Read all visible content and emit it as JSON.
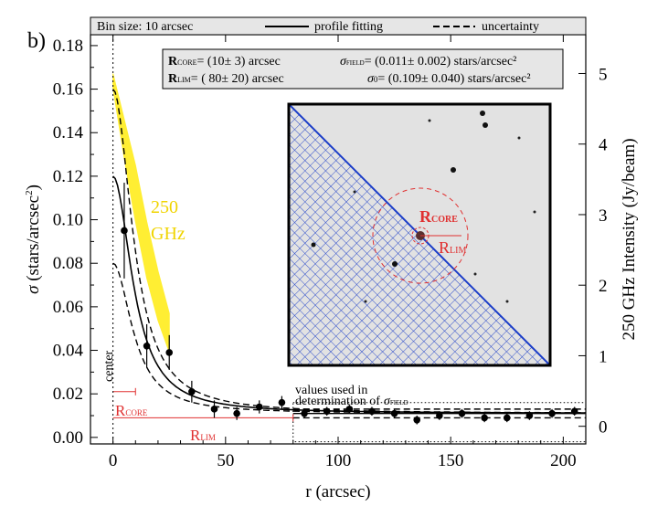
{
  "chart_data": {
    "type": "scatter",
    "panel_label": "b)",
    "title": "",
    "xlabel": "r (arcsec)",
    "ylabel": "σ (stars/arcsec²)",
    "ylabel_right": "250 GHz Intensity (Jy/beam)",
    "xlim": [
      -10,
      210
    ],
    "ylim": [
      -0.003,
      0.185
    ],
    "ylim_right": [
      -0.25,
      5.55
    ],
    "x_ticks": [
      0,
      50,
      100,
      150,
      200
    ],
    "y_ticks": [
      0.0,
      0.02,
      0.04,
      0.06,
      0.08,
      0.1,
      0.12,
      0.14,
      0.16,
      0.18
    ],
    "y_tick_labels": [
      "0.00",
      "0.02",
      "0.04",
      "0.06",
      "0.08",
      "0.10",
      "0.12",
      "0.14",
      "0.16",
      "0.18"
    ],
    "y_right_ticks": [
      0,
      1,
      2,
      3,
      4,
      5
    ],
    "legend": {
      "bin_size": "Bin size: 10 arcsec",
      "profile_fit": "profile fitting",
      "uncertainty": "uncertainty"
    },
    "params": {
      "r_core_label": "R",
      "r_core_sub": "CORE",
      "r_core_value": "= (10± 3) arcsec",
      "r_lim_label": "R",
      "r_lim_sub": "LIM",
      "r_lim_value": "= ( 80± 20) arcsec",
      "sigma_field_label": "σ",
      "sigma_field_sub": "FIELD",
      "sigma_field_value": "= (0.011± 0.002) stars/arcsec²",
      "sigma_0_label": "σ",
      "sigma_0_sub": "0",
      "sigma_0_value": "= (0.109± 0.040) stars/arcsec²"
    },
    "points": {
      "r": [
        5,
        15,
        25,
        35,
        45,
        55,
        65,
        75,
        85,
        95,
        105,
        115,
        125,
        135,
        145,
        155,
        165,
        175,
        185,
        195,
        205
      ],
      "sigma": [
        0.095,
        0.042,
        0.039,
        0.021,
        0.013,
        0.011,
        0.014,
        0.016,
        0.011,
        0.012,
        0.013,
        0.012,
        0.011,
        0.008,
        0.01,
        0.011,
        0.009,
        0.009,
        0.01,
        0.011,
        0.012
      ],
      "err": [
        0.022,
        0.01,
        0.008,
        0.005,
        0.004,
        0.003,
        0.003,
        0.003,
        0.002,
        0.002,
        0.002,
        0.002,
        0.002,
        0.002,
        0.002,
        0.002,
        0.002,
        0.002,
        0.002,
        0.002,
        0.002
      ]
    },
    "model": {
      "r_core": 10,
      "sigma_field": 0.011,
      "sigma_0": 0.109,
      "sigma_0_low": 0.069,
      "sigma_0_high": 0.149,
      "r_max": 210
    },
    "band_250ghz": {
      "label_line1": "250",
      "label_line2": "GHz",
      "r": [
        0,
        5,
        10,
        15,
        20,
        25
      ],
      "intensity_low": [
        4.8,
        3.8,
        2.9,
        2.1,
        1.5,
        1.05
      ],
      "intensity_high": [
        5.0,
        4.35,
        3.7,
        2.9,
        2.2,
        1.6
      ],
      "color": "#ffee33"
    },
    "annotations": {
      "center": "center",
      "values_used_line1": "values used in",
      "values_used_line2": "determination of",
      "values_used_sigma": "σ",
      "values_used_sub": "FIELD",
      "rcore_marker": "R",
      "rcore_marker_sub": "CORE",
      "rlim_marker": "R",
      "rlim_marker_sub": "LIM",
      "inset_rcore": "R",
      "inset_rcore_sub": "CORE",
      "inset_rlim": "R",
      "inset_rlim_sub": "LIM"
    },
    "colors": {
      "red": "#e03030",
      "blue": "#1a3cc8",
      "yellow": "#ffee33"
    }
  }
}
